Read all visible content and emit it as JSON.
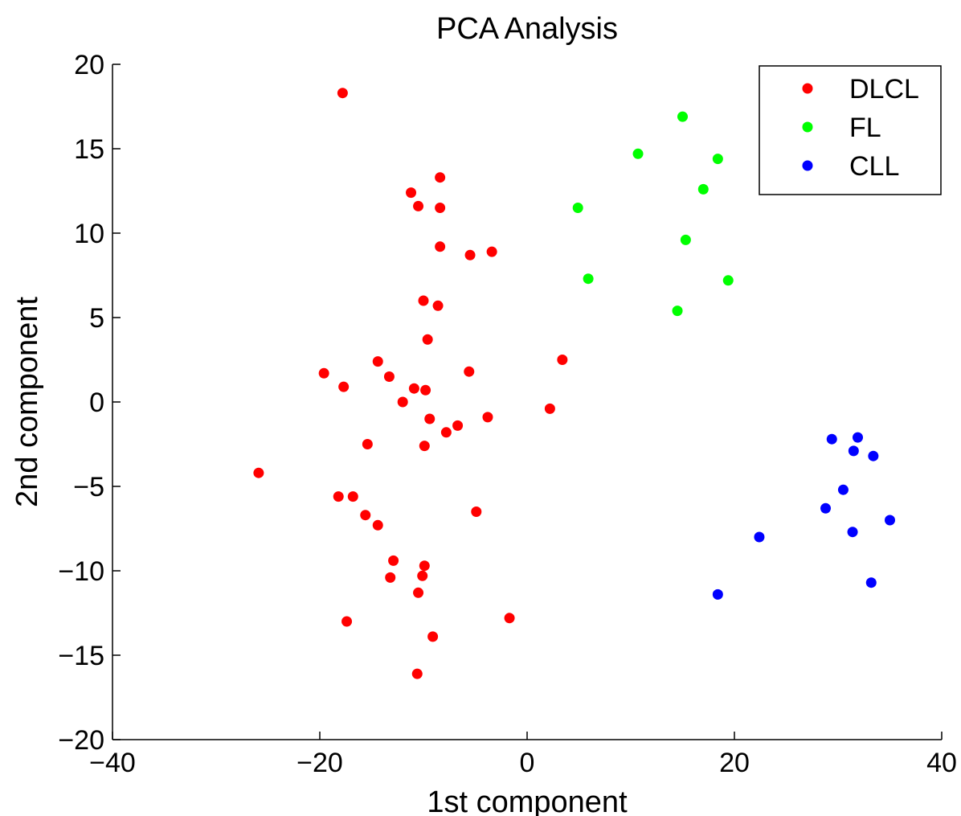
{
  "chart_data": {
    "type": "scatter",
    "title": "PCA Analysis",
    "xlabel": "1st component",
    "ylabel": "2nd component",
    "xlim": [
      -40,
      40
    ],
    "ylim": [
      -20,
      20
    ],
    "xticks": [
      -40,
      -20,
      0,
      20,
      40
    ],
    "yticks": [
      -20,
      -15,
      -10,
      -5,
      0,
      5,
      10,
      15,
      20
    ],
    "xtick_labels": [
      "−40",
      "−20",
      "0",
      "20",
      "40"
    ],
    "ytick_labels": [
      "−20",
      "−15",
      "−10",
      "−5",
      "0",
      "5",
      "10",
      "15",
      "20"
    ],
    "grid": false,
    "legend_position": "top-right",
    "series": [
      {
        "name": "DLCL",
        "color": "#ff0000",
        "points": [
          [
            -17.8,
            18.3
          ],
          [
            -8.4,
            13.3
          ],
          [
            -11.2,
            12.4
          ],
          [
            -10.5,
            11.6
          ],
          [
            -8.4,
            11.5
          ],
          [
            -8.4,
            9.2
          ],
          [
            -5.5,
            8.7
          ],
          [
            -3.4,
            8.9
          ],
          [
            -10.0,
            6.0
          ],
          [
            -8.6,
            5.7
          ],
          [
            -9.6,
            3.7
          ],
          [
            -14.4,
            2.4
          ],
          [
            -5.6,
            1.8
          ],
          [
            3.4,
            2.5
          ],
          [
            -19.6,
            1.7
          ],
          [
            -13.3,
            1.5
          ],
          [
            -17.7,
            0.9
          ],
          [
            -10.9,
            0.8
          ],
          [
            -9.8,
            0.7
          ],
          [
            -12.0,
            0.0
          ],
          [
            -9.4,
            -1.0
          ],
          [
            2.2,
            -0.4
          ],
          [
            -3.8,
            -0.9
          ],
          [
            -6.7,
            -1.4
          ],
          [
            -7.8,
            -1.8
          ],
          [
            -15.4,
            -2.5
          ],
          [
            -9.9,
            -2.6
          ],
          [
            -25.9,
            -4.2
          ],
          [
            -18.2,
            -5.6
          ],
          [
            -16.8,
            -5.6
          ],
          [
            -15.6,
            -6.7
          ],
          [
            -14.4,
            -7.3
          ],
          [
            -4.9,
            -6.5
          ],
          [
            -12.9,
            -9.4
          ],
          [
            -9.9,
            -9.7
          ],
          [
            -13.2,
            -10.4
          ],
          [
            -10.1,
            -10.3
          ],
          [
            -10.5,
            -11.3
          ],
          [
            -17.4,
            -13.0
          ],
          [
            -1.7,
            -12.8
          ],
          [
            -9.1,
            -13.9
          ],
          [
            -10.6,
            -16.1
          ]
        ]
      },
      {
        "name": "FL",
        "color": "#00ff00",
        "points": [
          [
            15.0,
            16.9
          ],
          [
            10.7,
            14.7
          ],
          [
            18.4,
            14.4
          ],
          [
            17.0,
            12.6
          ],
          [
            4.9,
            11.5
          ],
          [
            15.3,
            9.6
          ],
          [
            5.9,
            7.3
          ],
          [
            19.4,
            7.2
          ],
          [
            14.5,
            5.4
          ]
        ]
      },
      {
        "name": "CLL",
        "color": "#0000ff",
        "points": [
          [
            29.4,
            -2.2
          ],
          [
            31.9,
            -2.1
          ],
          [
            31.5,
            -2.9
          ],
          [
            33.4,
            -3.2
          ],
          [
            30.5,
            -5.2
          ],
          [
            28.8,
            -6.3
          ],
          [
            35.0,
            -7.0
          ],
          [
            31.4,
            -7.7
          ],
          [
            22.4,
            -8.0
          ],
          [
            33.2,
            -10.7
          ],
          [
            18.4,
            -11.4
          ]
        ]
      }
    ]
  }
}
